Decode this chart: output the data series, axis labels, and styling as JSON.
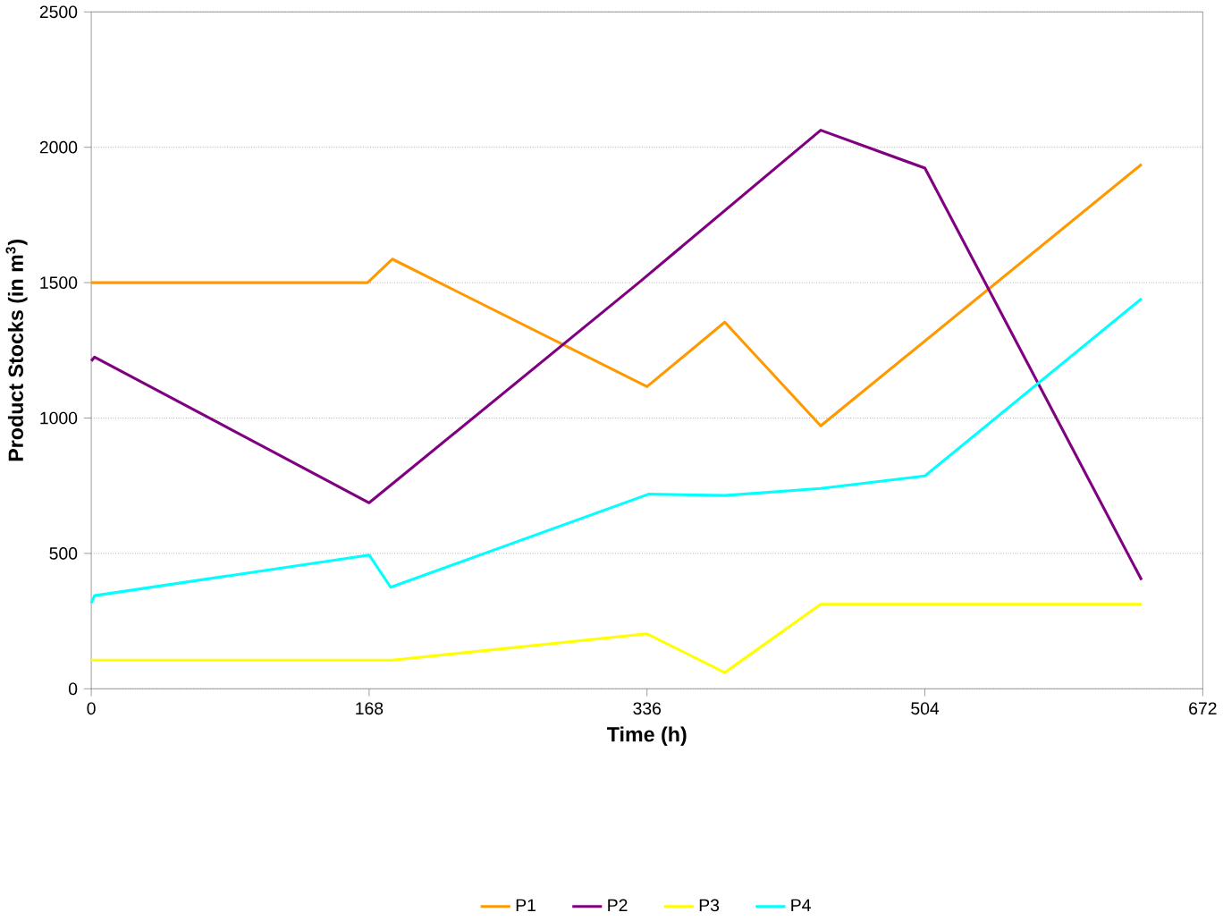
{
  "chart_data": {
    "type": "line",
    "xlabel": "Time (h)",
    "ylabel": "Product Stocks (in m$^{3}$)",
    "xlim": [
      0,
      672
    ],
    "xticks": [
      0,
      168,
      336,
      504,
      672
    ],
    "ylim": [
      0,
      2500
    ],
    "yticks": [
      0,
      500,
      1000,
      1500,
      2000,
      2500
    ],
    "grid": "y",
    "legend": "bottom",
    "marker": "none",
    "line_style": "solid",
    "series": [
      {
        "name": "P1",
        "color": "#ff9900",
        "x": [
          0,
          167,
          182,
          336,
          383,
          441,
          635
        ],
        "values": [
          1500,
          1500,
          1587,
          1116,
          1354,
          971,
          1937
        ]
      },
      {
        "name": "P2",
        "color": "#800080",
        "x": [
          0,
          2,
          168,
          331,
          441,
          504,
          635
        ],
        "values": [
          1211,
          1225,
          687,
          1500,
          2063,
          1923,
          402
        ]
      },
      {
        "name": "P3",
        "color": "#ffff00",
        "x": [
          0,
          182,
          336,
          383,
          441,
          635
        ],
        "values": [
          106,
          106,
          203,
          60,
          312,
          312
        ]
      },
      {
        "name": "P4",
        "color": "#00ffff",
        "x": [
          0,
          2,
          168,
          181,
          337,
          383,
          441,
          504,
          635
        ],
        "values": [
          317,
          344,
          494,
          375,
          719,
          714,
          740,
          786,
          1441
        ]
      }
    ]
  }
}
